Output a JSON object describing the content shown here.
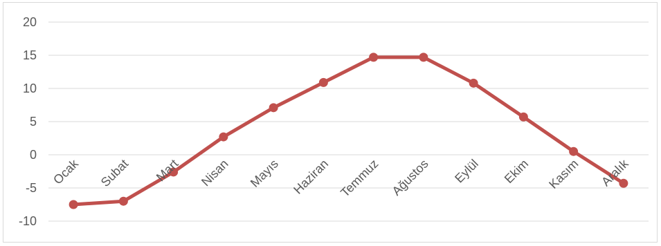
{
  "chart_data": {
    "type": "line",
    "categories": [
      "Ocak",
      "Subat",
      "Mart",
      "Nisan",
      "Mayıs",
      "Haziran",
      "Temmuz",
      "Ağustos",
      "Eylül",
      "Ekim",
      "Kasım",
      "Aralık"
    ],
    "series": [
      {
        "values": [
          -7.5,
          -7.0,
          -2.6,
          2.7,
          7.1,
          10.9,
          14.7,
          14.7,
          10.8,
          5.7,
          0.5,
          -4.3
        ]
      }
    ],
    "ylim": [
      -10,
      20
    ],
    "yticks": [
      -10,
      -5,
      0,
      5,
      10,
      15,
      20
    ],
    "grid": true,
    "title": "",
    "xlabel": "",
    "ylabel": "",
    "colors": {
      "line": "#c0504d",
      "grid": "#d9d9d9",
      "text": "#595959"
    }
  }
}
